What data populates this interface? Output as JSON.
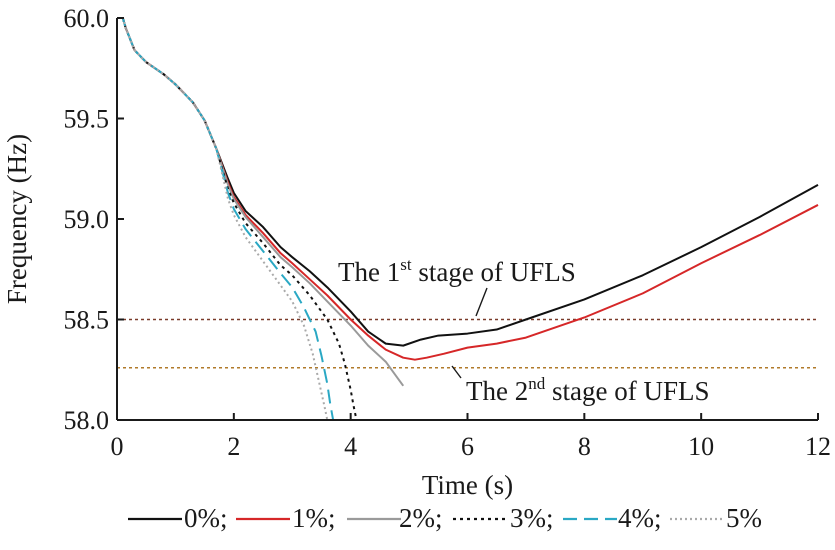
{
  "chart_data": {
    "type": "line",
    "xlabel": "Time (s)",
    "ylabel": "Frequency (Hz)",
    "xlim": [
      0,
      12
    ],
    "ylim": [
      58.0,
      60.0
    ],
    "xticks": [
      0,
      2,
      4,
      6,
      8,
      10,
      12
    ],
    "xtick_labels": [
      "0",
      "2",
      "4",
      "6",
      "8",
      "10",
      "12"
    ],
    "yticks": [
      58.0,
      58.5,
      59.0,
      59.5,
      60.0
    ],
    "ytick_labels": [
      "58.0",
      "58.5",
      "59.0",
      "59.5",
      "60.0"
    ],
    "grid": false,
    "legend_position": "bottom",
    "thresholds": [
      {
        "value": 58.5,
        "color": "#7a3b2a",
        "label_parts": [
          "The 1",
          "st",
          " stage of UFLS"
        ]
      },
      {
        "value": 58.26,
        "color": "#b07a2a",
        "label_parts": [
          "The 2",
          "nd",
          " stage of UFLS"
        ]
      }
    ],
    "series": [
      {
        "name": "0%;",
        "color": "#111111",
        "dash": "",
        "x": [
          0,
          0.1,
          0.15,
          0.3,
          0.5,
          0.8,
          1.0,
          1.3,
          1.5,
          1.7,
          1.9,
          2.0,
          2.2,
          2.5,
          2.8,
          3.0,
          3.3,
          3.6,
          4.0,
          4.3,
          4.6,
          4.9,
          5.2,
          5.5,
          6.0,
          6.5,
          7.0,
          8.0,
          9.0,
          10.0,
          11.0,
          12.0
        ],
        "y": [
          60.0,
          60.0,
          59.95,
          59.84,
          59.78,
          59.72,
          59.67,
          59.58,
          59.49,
          59.35,
          59.2,
          59.13,
          59.04,
          58.96,
          58.86,
          58.81,
          58.74,
          58.66,
          58.54,
          58.44,
          58.38,
          58.37,
          58.4,
          58.42,
          58.43,
          58.45,
          58.5,
          58.6,
          58.72,
          58.86,
          59.01,
          59.17
        ]
      },
      {
        "name": "1%;",
        "color": "#d62728",
        "dash": "",
        "x": [
          0,
          0.1,
          0.15,
          0.3,
          0.5,
          0.8,
          1.0,
          1.3,
          1.5,
          1.7,
          1.9,
          2.0,
          2.2,
          2.5,
          2.8,
          3.0,
          3.3,
          3.6,
          4.0,
          4.3,
          4.6,
          4.9,
          5.1,
          5.3,
          5.6,
          6.0,
          6.5,
          7.0,
          8.0,
          9.0,
          10.0,
          11.0,
          12.0
        ],
        "y": [
          60.0,
          60.0,
          59.95,
          59.84,
          59.78,
          59.72,
          59.67,
          59.58,
          59.49,
          59.35,
          59.18,
          59.11,
          59.02,
          58.93,
          58.83,
          58.78,
          58.7,
          58.62,
          58.5,
          58.42,
          58.35,
          58.31,
          58.3,
          58.31,
          58.33,
          58.36,
          58.38,
          58.41,
          58.51,
          58.63,
          58.78,
          58.92,
          59.07
        ]
      },
      {
        "name": "2%;",
        "color": "#9a9a9a",
        "dash": "",
        "x": [
          0,
          0.1,
          0.15,
          0.3,
          0.5,
          0.8,
          1.0,
          1.3,
          1.5,
          1.7,
          1.9,
          2.0,
          2.2,
          2.5,
          2.8,
          3.0,
          3.3,
          3.6,
          4.0,
          4.3,
          4.6,
          4.8,
          4.9
        ],
        "y": [
          60.0,
          60.0,
          59.95,
          59.84,
          59.78,
          59.72,
          59.67,
          59.58,
          59.49,
          59.35,
          59.17,
          59.1,
          59.01,
          58.91,
          58.81,
          58.76,
          58.68,
          58.59,
          58.47,
          58.37,
          58.29,
          58.21,
          58.17
        ]
      },
      {
        "name": "3%;",
        "color": "#111111",
        "dash": "3,4",
        "x": [
          0,
          0.1,
          0.15,
          0.3,
          0.5,
          0.8,
          1.0,
          1.3,
          1.5,
          1.7,
          1.9,
          2.0,
          2.2,
          2.5,
          2.8,
          3.0,
          3.3,
          3.6,
          3.8,
          3.9,
          4.0,
          4.05,
          4.1
        ],
        "y": [
          60.0,
          60.0,
          59.95,
          59.84,
          59.78,
          59.72,
          59.67,
          59.58,
          59.49,
          59.35,
          59.15,
          59.08,
          58.98,
          58.88,
          58.77,
          58.72,
          58.62,
          58.5,
          58.38,
          58.28,
          58.15,
          58.07,
          58.0
        ]
      },
      {
        "name": "4%;",
        "color": "#2aa8c4",
        "dash": "14,7",
        "x": [
          0,
          0.1,
          0.15,
          0.3,
          0.5,
          0.8,
          1.0,
          1.3,
          1.5,
          1.7,
          1.9,
          2.0,
          2.2,
          2.5,
          2.8,
          3.0,
          3.2,
          3.4,
          3.5,
          3.6,
          3.65,
          3.7
        ],
        "y": [
          60.0,
          60.0,
          59.95,
          59.84,
          59.78,
          59.72,
          59.67,
          59.58,
          59.49,
          59.35,
          59.13,
          59.05,
          58.95,
          58.84,
          58.73,
          58.66,
          58.56,
          58.44,
          58.32,
          58.18,
          58.08,
          58.0
        ]
      },
      {
        "name": "5%",
        "color": "#aaaaaa",
        "dash": "2,3",
        "x": [
          0,
          0.1,
          0.15,
          0.3,
          0.5,
          0.8,
          1.0,
          1.3,
          1.5,
          1.7,
          1.9,
          2.0,
          2.2,
          2.5,
          2.8,
          3.0,
          3.2,
          3.35,
          3.45,
          3.55,
          3.6
        ],
        "y": [
          60.0,
          60.0,
          59.95,
          59.84,
          59.78,
          59.72,
          59.67,
          59.58,
          59.49,
          59.35,
          59.1,
          59.02,
          58.91,
          58.79,
          58.67,
          58.59,
          58.47,
          58.33,
          58.2,
          58.07,
          58.0
        ]
      }
    ]
  }
}
